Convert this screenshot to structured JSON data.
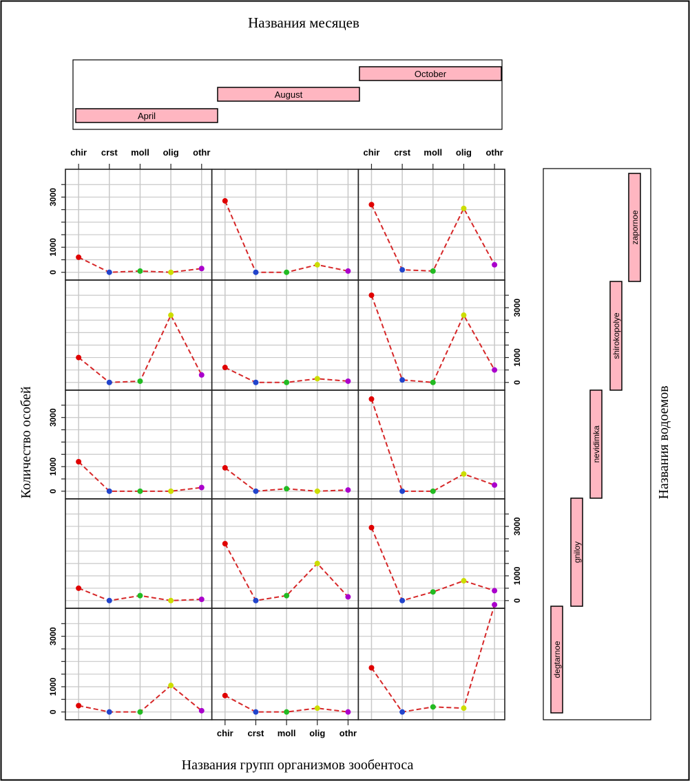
{
  "figure": {
    "top_title": "Названия месяцев",
    "xlabel": "Названия групп организмов зообентоса",
    "ylabel": "Количество особей",
    "right_label": "Названия водоемов"
  },
  "colors": {
    "line": "#d62728",
    "strip_fill": "#ffb6c1",
    "grid": "#c8c8c8",
    "point_colors": [
      "#e00000",
      "#2244cc",
      "#22bb22",
      "#ccdd00",
      "#aa00cc"
    ]
  },
  "chart_data": {
    "type": "line",
    "categories": [
      "chir",
      "crst",
      "moll",
      "olig",
      "othr"
    ],
    "months": [
      "April",
      "August",
      "October"
    ],
    "reservoirs": [
      "degtarnoe",
      "gniloy",
      "nevidimka",
      "shirokopolye",
      "zapornoe"
    ],
    "y_ticks": [
      0,
      1000,
      3000
    ],
    "ylim": [
      -200,
      4000
    ],
    "grid": true,
    "legend": "strips-top-and-right",
    "panels": [
      {
        "reservoir": "zapornoe",
        "month": "April",
        "values": [
          600,
          0,
          50,
          0,
          150
        ]
      },
      {
        "reservoir": "zapornoe",
        "month": "August",
        "values": [
          2850,
          0,
          0,
          300,
          50
        ]
      },
      {
        "reservoir": "zapornoe",
        "month": "October",
        "values": [
          2700,
          100,
          50,
          2550,
          300
        ]
      },
      {
        "reservoir": "shirokopolye",
        "month": "April",
        "values": [
          1000,
          0,
          50,
          2700,
          300
        ]
      },
      {
        "reservoir": "shirokopolye",
        "month": "August",
        "values": [
          600,
          0,
          0,
          150,
          50
        ]
      },
      {
        "reservoir": "shirokopolye",
        "month": "October",
        "values": [
          3500,
          100,
          0,
          2700,
          500
        ]
      },
      {
        "reservoir": "nevidimka",
        "month": "April",
        "values": [
          1200,
          0,
          0,
          0,
          150
        ]
      },
      {
        "reservoir": "nevidimka",
        "month": "August",
        "values": [
          950,
          0,
          100,
          0,
          50
        ]
      },
      {
        "reservoir": "nevidimka",
        "month": "October",
        "values": [
          3750,
          0,
          0,
          700,
          250
        ]
      },
      {
        "reservoir": "gniloy",
        "month": "April",
        "values": [
          500,
          0,
          200,
          0,
          50
        ]
      },
      {
        "reservoir": "gniloy",
        "month": "August",
        "values": [
          2300,
          0,
          200,
          1500,
          150
        ]
      },
      {
        "reservoir": "gniloy",
        "month": "October",
        "values": [
          2950,
          0,
          350,
          800,
          400
        ]
      },
      {
        "reservoir": "degtarnoe",
        "month": "April",
        "values": [
          250,
          0,
          0,
          1050,
          50
        ]
      },
      {
        "reservoir": "degtarnoe",
        "month": "August",
        "values": [
          650,
          0,
          0,
          150,
          0
        ]
      },
      {
        "reservoir": "degtarnoe",
        "month": "October",
        "values": [
          1750,
          0,
          200,
          150,
          4250
        ]
      }
    ]
  }
}
